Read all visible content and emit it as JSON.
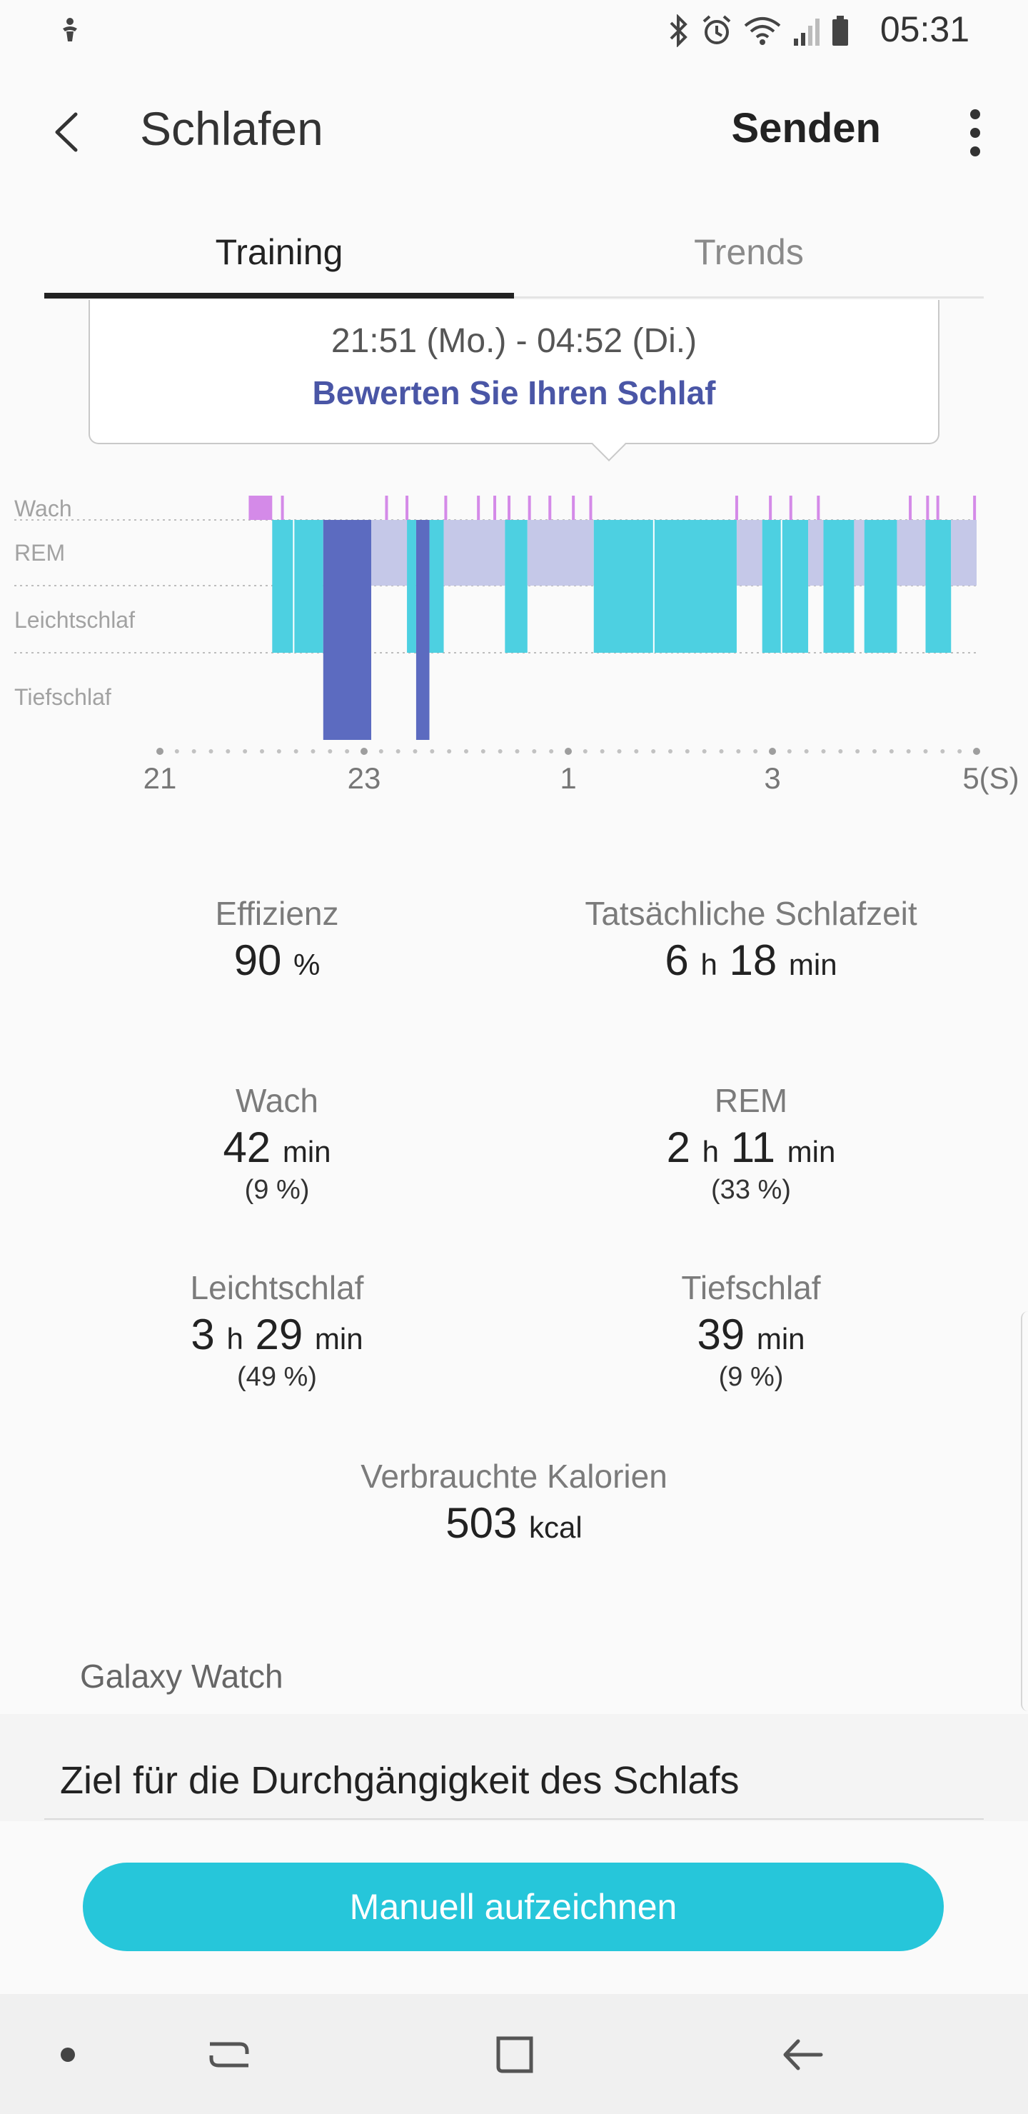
{
  "status_bar": {
    "time": "05:31",
    "icons": [
      "notification-icon",
      "bluetooth-icon",
      "alarm-icon",
      "wifi-icon",
      "signal-icon",
      "battery-icon"
    ]
  },
  "app_bar": {
    "title": "Schlafen",
    "send_label": "Senden"
  },
  "tabs": [
    {
      "label": "Training",
      "active": true
    },
    {
      "label": "Trends",
      "active": false
    }
  ],
  "tooltip": {
    "range": "21:51 (Mo.) - 04:52 (Di.)",
    "rate_link": "Bewerten Sie Ihren Schlaf"
  },
  "chart_data": {
    "type": "timeline",
    "stages": [
      "Wach",
      "REM",
      "Leichtschlaf",
      "Tiefschlaf"
    ],
    "x_tick_labels": [
      "21",
      "23",
      "1",
      "3",
      "5(S)"
    ],
    "colors": {
      "Wach": "#d48ae8",
      "REM": "#c5c8e8",
      "Leichtschlaf": "#4dd0e1",
      "Tiefschlaf": "#5c6bc0"
    },
    "segments": [
      {
        "stage": "Wach",
        "start": 21.87,
        "end": 22.1
      },
      {
        "stage": "Leichtschlaf",
        "start": 22.1,
        "end": 22.6
      },
      {
        "stage": "Tiefschlaf",
        "start": 22.6,
        "end": 23.07
      },
      {
        "stage": "REM",
        "start": 23.07,
        "end": 23.42
      },
      {
        "stage": "Leichtschlaf",
        "start": 23.42,
        "end": 23.51
      },
      {
        "stage": "Tiefschlaf",
        "start": 23.51,
        "end": 23.64
      },
      {
        "stage": "Leichtschlaf",
        "start": 23.64,
        "end": 23.78
      },
      {
        "stage": "REM",
        "start": 23.78,
        "end": 24.38
      },
      {
        "stage": "Leichtschlaf",
        "start": 24.38,
        "end": 24.6
      },
      {
        "stage": "REM",
        "start": 24.6,
        "end": 25.25
      },
      {
        "stage": "Leichtschlaf",
        "start": 25.25,
        "end": 26.65
      },
      {
        "stage": "REM",
        "start": 26.65,
        "end": 26.9
      },
      {
        "stage": "Leichtschlaf",
        "start": 26.9,
        "end": 27.35
      },
      {
        "stage": "REM",
        "start": 27.35,
        "end": 27.5
      },
      {
        "stage": "Leichtschlaf",
        "start": 27.5,
        "end": 27.8
      },
      {
        "stage": "REM",
        "start": 27.8,
        "end": 27.9
      },
      {
        "stage": "Leichtschlaf",
        "start": 27.9,
        "end": 28.22
      },
      {
        "stage": "REM",
        "start": 28.22,
        "end": 28.5
      },
      {
        "stage": "Leichtschlaf",
        "start": 28.5,
        "end": 28.75
      },
      {
        "stage": "REM",
        "start": 28.75,
        "end": 29.0
      }
    ],
    "wake_ticks": [
      22.2,
      23.22,
      23.42,
      23.8,
      24.12,
      24.28,
      24.42,
      24.62,
      24.82,
      25.05,
      25.22,
      26.65,
      26.98,
      27.18,
      27.45,
      28.35,
      28.52,
      28.62,
      28.98
    ]
  },
  "stats": {
    "efficiency": {
      "label": "Effizienz",
      "value": "90",
      "unit": "%"
    },
    "actual_sleep": {
      "label": "Tatsächliche Schlafzeit",
      "hours": "6",
      "h_unit": "h",
      "minutes": "18",
      "min_unit": "min"
    },
    "awake": {
      "label": "Wach",
      "minutes": "42",
      "min_unit": "min",
      "percent": "(9 %)"
    },
    "rem": {
      "label": "REM",
      "hours": "2",
      "h_unit": "h",
      "minutes": "11",
      "min_unit": "min",
      "percent": "(33 %)"
    },
    "light": {
      "label": "Leichtschlaf",
      "hours": "3",
      "h_unit": "h",
      "minutes": "29",
      "min_unit": "min",
      "percent": "(49 %)"
    },
    "deep": {
      "label": "Tiefschlaf",
      "minutes": "39",
      "min_unit": "min",
      "percent": "(9 %)"
    },
    "calories": {
      "label": "Verbrauchte Kalorien",
      "value": "503",
      "unit": "kcal"
    }
  },
  "device_label": "Galaxy Watch",
  "goal_row": "Ziel für die Durchgängigkeit des Schlafs",
  "manual_button": "Manuell aufzeichnen",
  "nav_bar": [
    "dot-icon",
    "recents-icon",
    "home-icon",
    "back-icon"
  ]
}
